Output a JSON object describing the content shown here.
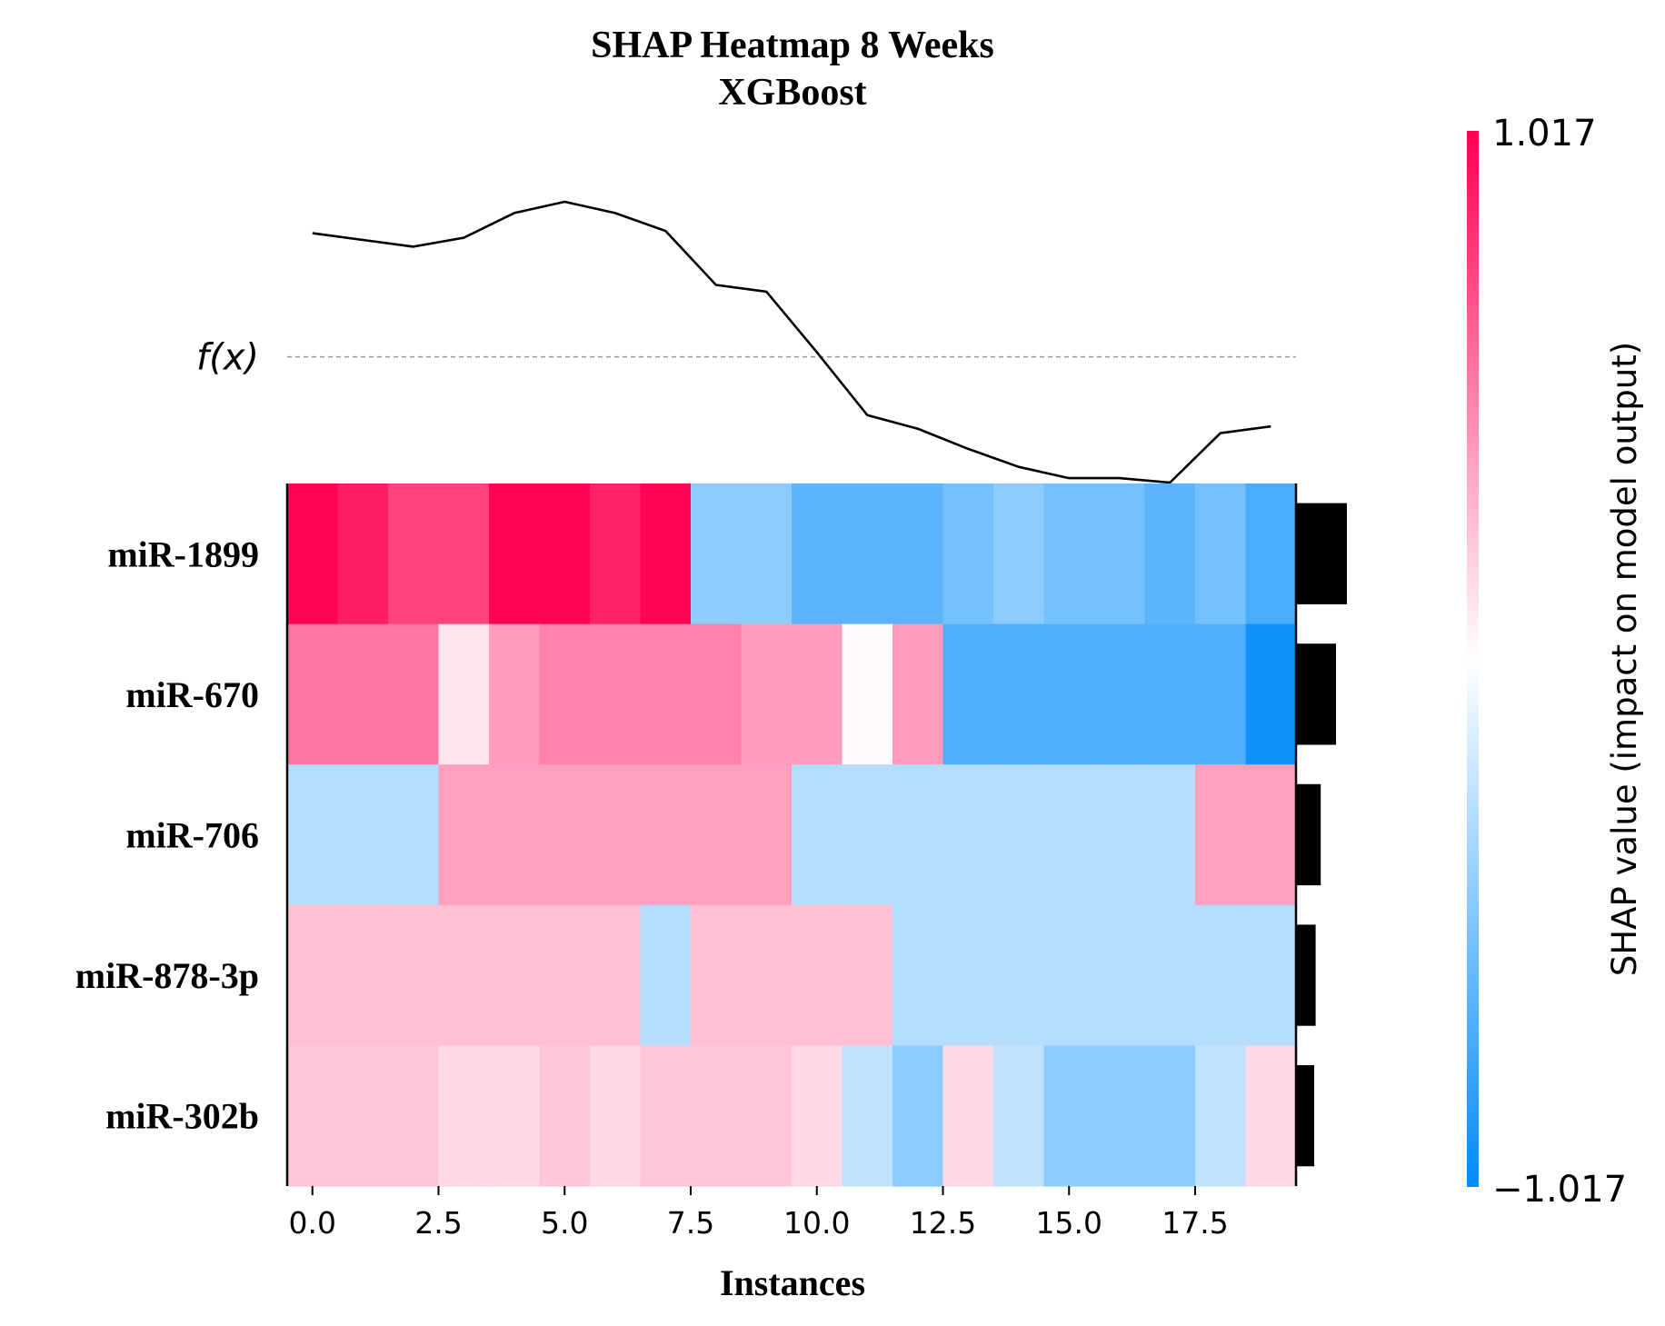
{
  "chart_data": {
    "type": "heatmap",
    "title": "SHAP Heatmap 8 Weeks",
    "subtitle": "XGBoost",
    "xlabel": "Instances",
    "fx_label": "f(x)",
    "colorbar_label": "SHAP value (impact on model output)",
    "colorbar_max_label": "1.017",
    "colorbar_min_label": "−1.017",
    "vmin": -1.017,
    "vmax": 1.017,
    "xlim": [
      -0.5,
      19.5
    ],
    "x_ticks": [
      0.0,
      2.5,
      5.0,
      7.5,
      10.0,
      12.5,
      15.0,
      17.5
    ],
    "x_tick_labels": [
      "0.0",
      "2.5",
      "5.0",
      "7.5",
      "10.0",
      "12.5",
      "15.0",
      "17.5"
    ],
    "colors": {
      "positive": "#ff0052",
      "negative": "#008bfb",
      "neutral": "#ffffff",
      "bar": "#000000",
      "line": "#000000",
      "baseline": "#999999"
    },
    "features": [
      "miR-1899",
      "miR-670",
      "miR-706",
      "miR-878-3p",
      "miR-302b"
    ],
    "shap_values": [
      [
        1.0,
        0.9,
        0.75,
        0.75,
        1.0,
        1.0,
        0.88,
        1.0,
        -0.45,
        -0.45,
        -0.65,
        -0.65,
        -0.65,
        -0.55,
        -0.45,
        -0.55,
        -0.55,
        -0.65,
        -0.55,
        -0.72
      ],
      [
        0.55,
        0.55,
        0.55,
        0.1,
        0.4,
        0.5,
        0.5,
        0.5,
        0.5,
        0.4,
        0.4,
        0.02,
        0.4,
        -0.7,
        -0.7,
        -0.7,
        -0.7,
        -0.7,
        -0.7,
        -0.95
      ],
      [
        -0.3,
        -0.3,
        -0.3,
        0.38,
        0.38,
        0.38,
        0.38,
        0.38,
        0.38,
        0.38,
        -0.3,
        -0.3,
        -0.3,
        -0.3,
        -0.3,
        -0.3,
        -0.3,
        -0.3,
        0.38,
        0.38
      ],
      [
        0.25,
        0.25,
        0.25,
        0.25,
        0.25,
        0.25,
        0.25,
        -0.3,
        0.25,
        0.25,
        0.25,
        0.25,
        -0.3,
        -0.3,
        -0.3,
        -0.3,
        -0.3,
        -0.3,
        -0.3,
        -0.3
      ],
      [
        0.23,
        0.23,
        0.23,
        0.15,
        0.15,
        0.23,
        0.15,
        0.23,
        0.23,
        0.23,
        0.15,
        -0.25,
        -0.45,
        0.15,
        -0.25,
        -0.45,
        -0.45,
        -0.45,
        -0.25,
        0.15
      ]
    ],
    "importance": [
      0.7,
      0.55,
      0.34,
      0.27,
      0.25
    ],
    "fx_values": [
      0.55,
      0.52,
      0.49,
      0.53,
      0.64,
      0.69,
      0.64,
      0.56,
      0.32,
      0.29,
      0.02,
      -0.26,
      -0.32,
      -0.41,
      -0.49,
      -0.54,
      -0.54,
      -0.56,
      -0.34,
      -0.31
    ],
    "fx_baseline": 0.0
  }
}
